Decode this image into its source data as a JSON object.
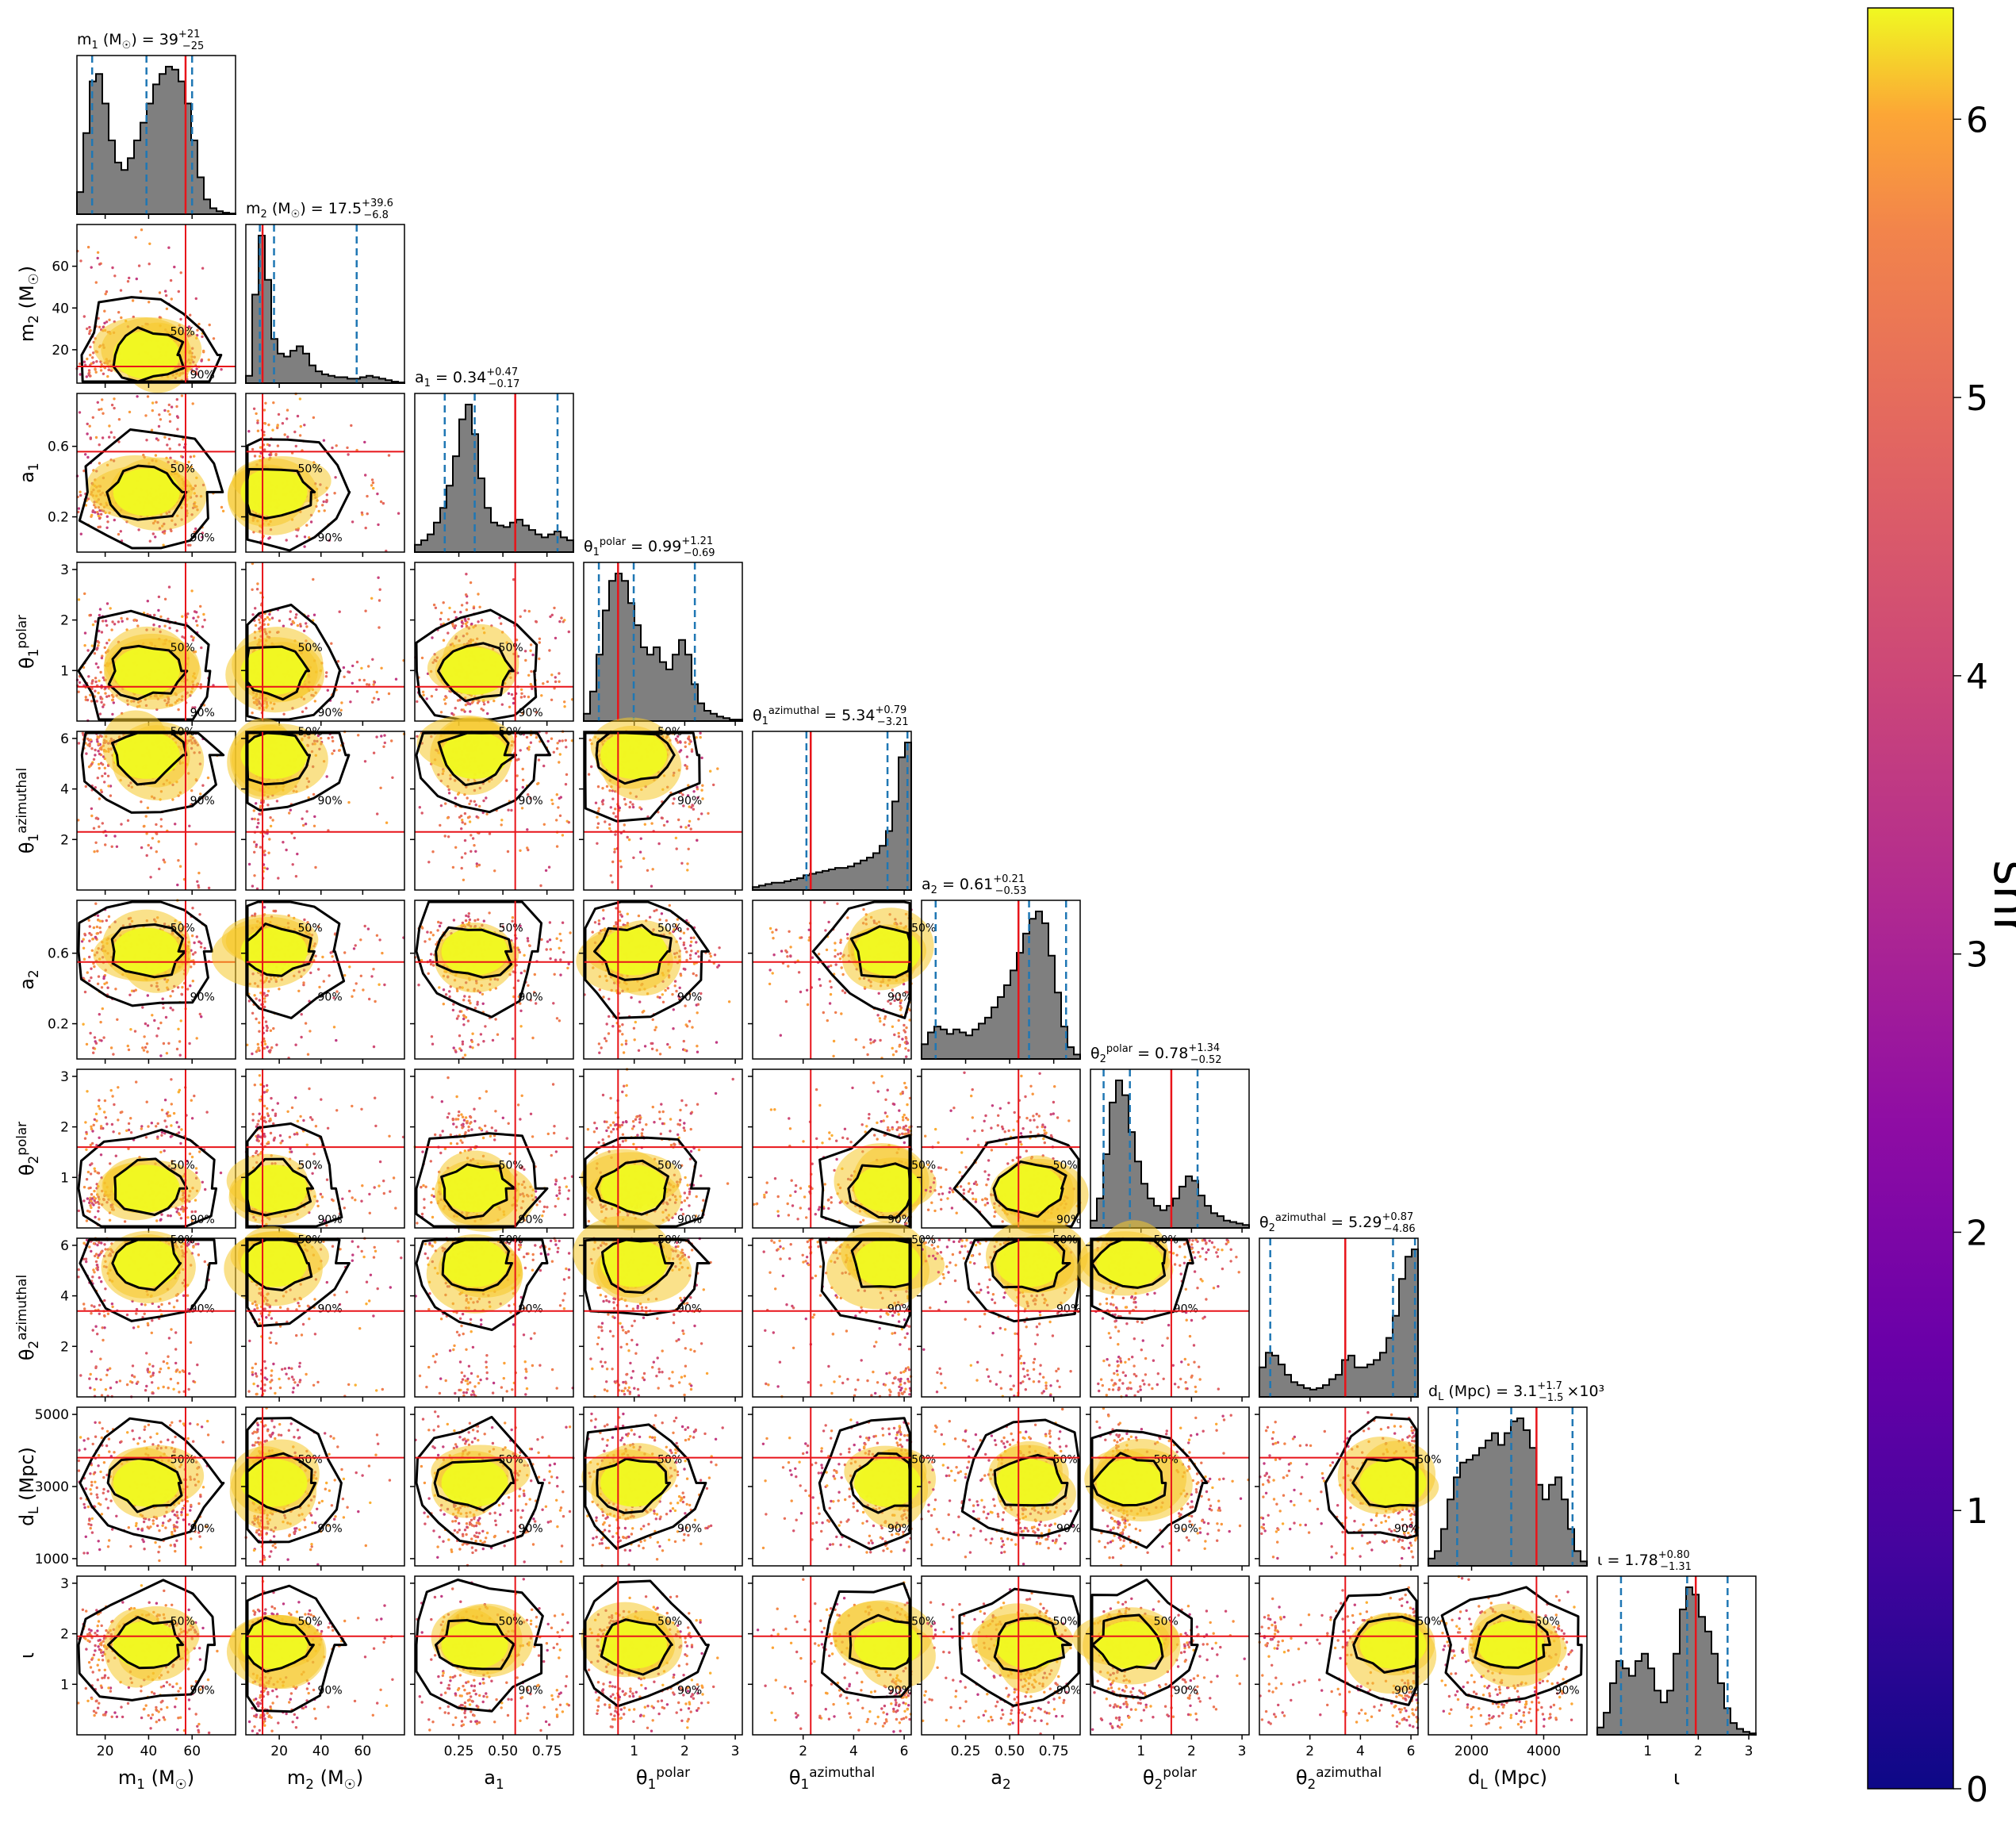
{
  "figure": {
    "type": "corner",
    "parameters": [
      {
        "key": "m1",
        "xlabel": "m_1 (M_☉)",
        "title": "m_1 (M_☉) = 39",
        "title_sup": "+21",
        "title_sub": "−25",
        "title_suffix": "",
        "ticks": [
          20,
          40,
          60
        ],
        "tick_labels": [
          "20",
          "40",
          "60"
        ],
        "range": [
          7,
          80
        ],
        "median": 39,
        "q_low": 14,
        "q_high": 60,
        "truth": 57,
        "hist": [
          0.15,
          0.55,
          0.9,
          0.95,
          0.75,
          0.5,
          0.35,
          0.3,
          0.38,
          0.5,
          0.62,
          0.75,
          0.88,
          0.95,
          1.0,
          0.98,
          0.9,
          0.75,
          0.5,
          0.25,
          0.1,
          0.04,
          0.02,
          0.01,
          0.005
        ]
      },
      {
        "key": "m2",
        "xlabel": "m_2 (M_☉)",
        "title": "m_2 (M_☉) = 17.5",
        "title_sup": "+39.6",
        "title_sub": "−6.8",
        "title_suffix": "",
        "ticks": [
          20,
          40,
          60
        ],
        "tick_labels": [
          "20",
          "40",
          "60"
        ],
        "range": [
          4,
          80
        ],
        "median": 17.5,
        "q_low": 10.7,
        "q_high": 57.1,
        "truth": 12,
        "hist": [
          0.05,
          0.6,
          1.0,
          0.7,
          0.3,
          0.2,
          0.18,
          0.22,
          0.25,
          0.2,
          0.12,
          0.08,
          0.06,
          0.05,
          0.04,
          0.04,
          0.03,
          0.03,
          0.04,
          0.05,
          0.04,
          0.03,
          0.02,
          0.01,
          0.005
        ]
      },
      {
        "key": "a1",
        "xlabel": "a_1",
        "title": "a_1 = 0.34",
        "title_sup": "+0.47",
        "title_sub": "−0.17",
        "title_suffix": "",
        "ticks": [
          0.25,
          0.5,
          0.75
        ],
        "tick_labels": [
          "0.25",
          "0.50",
          "0.75"
        ],
        "range": [
          0.0,
          0.9
        ],
        "yticks": [
          0.2,
          0.6
        ],
        "ytick_labels": [
          "0.2",
          "0.6"
        ],
        "median": 0.34,
        "q_low": 0.17,
        "q_high": 0.81,
        "truth": 0.57,
        "hist": [
          0.05,
          0.08,
          0.12,
          0.2,
          0.3,
          0.45,
          0.65,
          0.9,
          1.0,
          0.8,
          0.5,
          0.3,
          0.2,
          0.18,
          0.17,
          0.2,
          0.22,
          0.18,
          0.15,
          0.12,
          0.1,
          0.12,
          0.14,
          0.1,
          0.08
        ]
      },
      {
        "key": "t1p",
        "xlabel": "θ_1^polar",
        "title": "θ_1^polar = 0.99",
        "title_sup": "+1.21",
        "title_sub": "−0.69",
        "title_suffix": "",
        "ticks": [
          1,
          2,
          3
        ],
        "tick_labels": [
          "1",
          "2",
          "3"
        ],
        "range": [
          0,
          3.14
        ],
        "median": 0.99,
        "q_low": 0.3,
        "q_high": 2.2,
        "truth": 0.68,
        "hist": [
          0.05,
          0.2,
          0.45,
          0.75,
          0.95,
          1.0,
          0.95,
          0.8,
          0.65,
          0.5,
          0.45,
          0.5,
          0.4,
          0.35,
          0.45,
          0.55,
          0.45,
          0.25,
          0.12,
          0.07,
          0.05,
          0.03,
          0.02,
          0.01,
          0.01
        ]
      },
      {
        "key": "t1a",
        "xlabel": "θ_1^azimuthal",
        "title": "θ_1^azimuthal = 5.34",
        "title_sup": "+0.79",
        "title_sub": "−3.21",
        "title_suffix": "",
        "ticks": [
          2,
          4,
          6
        ],
        "tick_labels": [
          "2",
          "4",
          "6"
        ],
        "range": [
          0,
          6.28
        ],
        "median": 5.34,
        "q_low": 2.13,
        "q_high": 6.13,
        "truth": 2.3,
        "hist": [
          0.02,
          0.03,
          0.04,
          0.05,
          0.05,
          0.06,
          0.07,
          0.08,
          0.1,
          0.11,
          0.12,
          0.13,
          0.14,
          0.15,
          0.15,
          0.16,
          0.18,
          0.2,
          0.22,
          0.25,
          0.3,
          0.4,
          0.6,
          0.9,
          1.0
        ]
      },
      {
        "key": "a2",
        "xlabel": "a_2",
        "title": "a_2 = 0.61",
        "title_sup": "+0.21",
        "title_sub": "−0.53",
        "title_suffix": "",
        "ticks": [
          0.25,
          0.5,
          0.75
        ],
        "tick_labels": [
          "0.25",
          "0.50",
          "0.75"
        ],
        "range": [
          0.0,
          0.9
        ],
        "yticks": [
          0.2,
          0.6
        ],
        "ytick_labels": [
          "0.2",
          "0.6"
        ],
        "median": 0.61,
        "q_low": 0.08,
        "q_high": 0.82,
        "truth": 0.55,
        "hist": [
          0.1,
          0.18,
          0.22,
          0.2,
          0.17,
          0.2,
          0.18,
          0.16,
          0.2,
          0.24,
          0.28,
          0.35,
          0.42,
          0.5,
          0.6,
          0.72,
          0.85,
          0.95,
          1.0,
          0.92,
          0.7,
          0.45,
          0.22,
          0.08,
          0.03
        ]
      },
      {
        "key": "t2p",
        "xlabel": "θ_2^polar",
        "title": "θ_2^polar = 0.78",
        "title_sup": "+1.34",
        "title_sub": "−0.52",
        "title_suffix": "",
        "ticks": [
          1,
          2,
          3
        ],
        "tick_labels": [
          "1",
          "2",
          "3"
        ],
        "range": [
          0,
          3.14
        ],
        "median": 0.78,
        "q_low": 0.26,
        "q_high": 2.12,
        "truth": 1.6,
        "hist": [
          0.05,
          0.2,
          0.5,
          0.85,
          1.0,
          0.9,
          0.65,
          0.45,
          0.3,
          0.2,
          0.15,
          0.12,
          0.15,
          0.2,
          0.28,
          0.35,
          0.32,
          0.22,
          0.15,
          0.1,
          0.08,
          0.05,
          0.04,
          0.03,
          0.02
        ]
      },
      {
        "key": "t2a",
        "xlabel": "θ_2^azimuthal",
        "title": "θ_2^azimuthal = 5.29",
        "title_sup": "+0.87",
        "title_sub": "−4.86",
        "title_suffix": "",
        "ticks": [
          2,
          4,
          6
        ],
        "tick_labels": [
          "2",
          "4",
          "6"
        ],
        "range": [
          0,
          6.28
        ],
        "median": 5.29,
        "q_low": 0.43,
        "q_high": 6.16,
        "truth": 3.4,
        "hist": [
          0.2,
          0.3,
          0.28,
          0.22,
          0.15,
          0.1,
          0.08,
          0.06,
          0.05,
          0.06,
          0.08,
          0.12,
          0.15,
          0.25,
          0.28,
          0.2,
          0.2,
          0.22,
          0.25,
          0.3,
          0.4,
          0.55,
          0.8,
          0.95,
          1.0
        ]
      },
      {
        "key": "dl",
        "xlabel": "d_L (Mpc)",
        "title": "d_L (Mpc) = 3.1",
        "title_sup": "+1.7",
        "title_sub": "−1.5",
        "title_suffix": "×10³",
        "ticks": [
          2000,
          4000
        ],
        "tick_labels": [
          "2000",
          "4000"
        ],
        "range": [
          800,
          5200
        ],
        "yticks": [
          1000,
          3000,
          5000
        ],
        "ytick_labels": [
          "1000",
          "3000",
          "5000"
        ],
        "median": 3100,
        "q_low": 1600,
        "q_high": 4800,
        "truth": 3800,
        "hist": [
          0.05,
          0.1,
          0.25,
          0.45,
          0.6,
          0.7,
          0.72,
          0.75,
          0.8,
          0.85,
          0.9,
          0.82,
          0.9,
          0.98,
          1.0,
          0.92,
          0.8,
          0.55,
          0.45,
          0.55,
          0.6,
          0.45,
          0.25,
          0.1,
          0.03
        ]
      },
      {
        "key": "iota",
        "xlabel": "ι",
        "title": "ι = 1.78",
        "title_sup": "+0.80",
        "title_sub": "−1.31",
        "title_suffix": "",
        "ticks": [
          1,
          2,
          3
        ],
        "tick_labels": [
          "1",
          "2",
          "3"
        ],
        "range": [
          0,
          3.14
        ],
        "median": 1.78,
        "q_low": 0.47,
        "q_high": 2.58,
        "truth": 1.95,
        "hist": [
          0.05,
          0.15,
          0.35,
          0.5,
          0.45,
          0.4,
          0.5,
          0.55,
          0.45,
          0.3,
          0.22,
          0.3,
          0.55,
          0.85,
          1.0,
          0.95,
          0.8,
          0.7,
          0.55,
          0.35,
          0.18,
          0.08,
          0.04,
          0.02,
          0.01
        ]
      }
    ],
    "contour_labels": [
      "50%",
      "90%"
    ],
    "colorbar": {
      "label": "snr",
      "ticks": [
        0,
        1,
        2,
        3,
        4,
        5,
        6
      ],
      "tick_labels": [
        "0",
        "1",
        "2",
        "3",
        "4",
        "5",
        "6"
      ],
      "range": [
        0,
        6.4
      ],
      "colormap": "plasma"
    },
    "colors": {
      "hist_fill": "#7f7f7f",
      "quantile_line": "#1f77b4",
      "truth_line": "#e8141a",
      "contour": "#000000"
    }
  }
}
